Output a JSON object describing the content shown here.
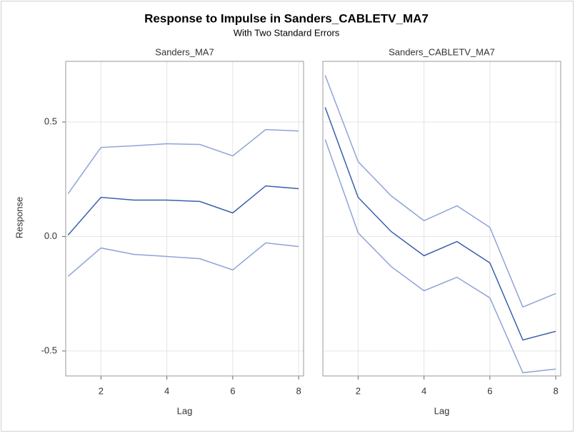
{
  "chart_data": {
    "type": "line",
    "title": "Response to Impulse in Sanders_CABLETV_MA7",
    "subtitle": "With Two Standard Errors",
    "y_label": "Response",
    "ylim": [
      -0.609,
      0.765
    ],
    "yticks": [
      -0.5,
      {
        "value": 0,
        "label": "0.0"
      },
      0.5
    ],
    "xlim": [
      0.93,
      8.15
    ],
    "xticks": [
      2,
      4,
      6,
      8
    ],
    "grid": true,
    "panels": [
      {
        "title": "Sanders_MA7",
        "x_label": "Lag",
        "x": [
          1,
          2,
          3,
          4,
          5,
          6,
          7,
          8
        ],
        "series": [
          {
            "color": "#8fa3d9",
            "values": [
              0.187,
              0.389,
              0.396,
              0.405,
              0.402,
              0.352,
              0.467,
              0.461
            ]
          },
          {
            "color": "#3a5fad",
            "values": [
              0.006,
              0.171,
              0.159,
              0.159,
              0.153,
              0.103,
              0.221,
              0.209
            ]
          },
          {
            "color": "#8fa3d9",
            "values": [
              -0.174,
              -0.05,
              -0.078,
              -0.087,
              -0.097,
              -0.146,
              -0.028,
              -0.044
            ]
          }
        ]
      },
      {
        "title": "Sanders_CABLETV_MA7",
        "x_label": "Lag",
        "x": [
          1,
          2,
          3,
          4,
          5,
          6,
          7,
          8
        ],
        "series": [
          {
            "color": "#8fa3d9",
            "values": [
              0.704,
              0.327,
              0.178,
              0.069,
              0.134,
              0.04,
              -0.308,
              -0.249
            ]
          },
          {
            "color": "#3a5fad",
            "values": [
              0.564,
              0.171,
              0.022,
              -0.084,
              -0.022,
              -0.115,
              -0.452,
              -0.414
            ]
          },
          {
            "color": "#8fa3d9",
            "values": [
              0.424,
              0.016,
              -0.131,
              -0.237,
              -0.178,
              -0.268,
              -0.595,
              -0.579
            ]
          }
        ]
      }
    ]
  }
}
